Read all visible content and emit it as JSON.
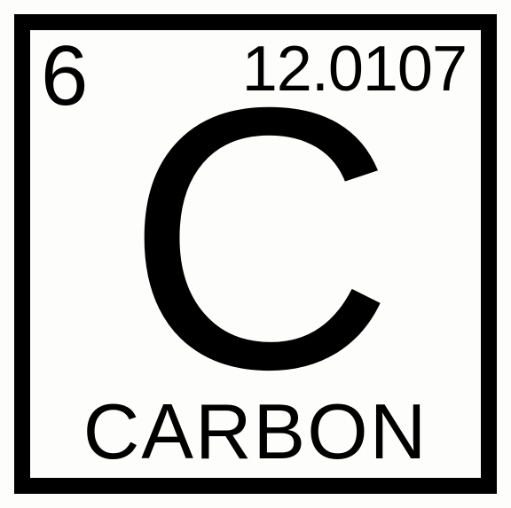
{
  "element_tile": {
    "type": "infographic",
    "atomic_number": "6",
    "atomic_mass": "12.0107",
    "symbol": "C",
    "name": "CARBON",
    "border_color": "#000000",
    "border_width": 18,
    "background_color": "#fdfdfc",
    "text_color": "#000000",
    "atomic_number_fontsize": 96,
    "atomic_mass_fontsize": 72,
    "symbol_fontsize": 420,
    "name_fontsize": 88,
    "font_family": "Arial"
  }
}
